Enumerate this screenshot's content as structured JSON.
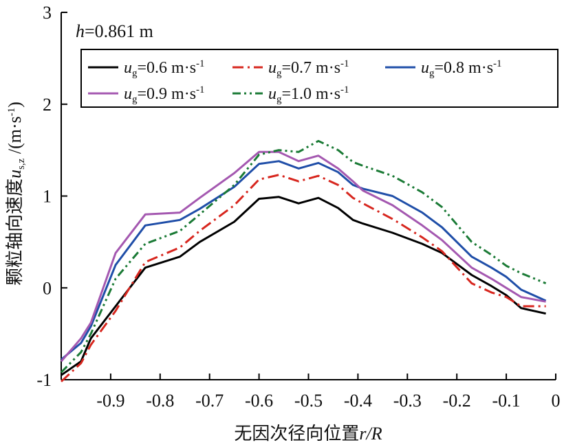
{
  "chart_data": {
    "type": "line",
    "annotation": {
      "var": "h",
      "text": "=0.861 m"
    },
    "xlabel": {
      "text": "无因次径向位置",
      "var": "r/R"
    },
    "ylabel": {
      "text": "颗粒轴向速度",
      "var": "u",
      "sub": "s,z",
      "unit": " /(m·s",
      "unit_sup": "-1",
      "unit_close": ")"
    },
    "xlim": [
      -1,
      0
    ],
    "ylim": [
      -1,
      3
    ],
    "xticks": [
      -0.9,
      -0.8,
      -0.7,
      -0.6,
      -0.5,
      -0.4,
      -0.3,
      -0.2,
      -0.1,
      0
    ],
    "xtick_labels": [
      "-0.9",
      "-0.8",
      "-0.7",
      "-0.6",
      "-0.5",
      "-0.4",
      "-0.3",
      "-0.2",
      "-0.1",
      "0"
    ],
    "yticks": [
      -1,
      0,
      1,
      2,
      3
    ],
    "ytick_labels": [
      "-1",
      "0",
      "1",
      "2",
      "3"
    ],
    "legend_position": "top",
    "x": [
      -1.0,
      -0.96,
      -0.94,
      -0.89,
      -0.83,
      -0.76,
      -0.72,
      -0.65,
      -0.6,
      -0.56,
      -0.52,
      -0.48,
      -0.44,
      -0.41,
      -0.39,
      -0.33,
      -0.27,
      -0.23,
      -0.17,
      -0.13,
      -0.1,
      -0.07,
      -0.02
    ],
    "series": [
      {
        "name": "=0.6 m·s",
        "var": "u",
        "sub": "g",
        "sup": "-1",
        "color": "#000000",
        "dash": "solid",
        "values": [
          -0.95,
          -0.8,
          -0.55,
          -0.2,
          0.22,
          0.34,
          0.5,
          0.72,
          0.97,
          0.99,
          0.92,
          0.98,
          0.87,
          0.74,
          0.7,
          0.6,
          0.48,
          0.38,
          0.14,
          0.02,
          -0.08,
          -0.22,
          -0.28
        ]
      },
      {
        "name": "=0.7 m·s",
        "var": "u",
        "sub": "g",
        "sup": "-1",
        "color": "#d7261e",
        "dash": "dashdot",
        "values": [
          -1.02,
          -0.82,
          -0.62,
          -0.25,
          0.28,
          0.44,
          0.62,
          0.9,
          1.18,
          1.23,
          1.16,
          1.22,
          1.12,
          0.98,
          0.92,
          0.75,
          0.55,
          0.4,
          0.05,
          -0.05,
          -0.1,
          -0.2,
          -0.2
        ]
      },
      {
        "name": "=0.8 m·s",
        "var": "u",
        "sub": "g",
        "sup": "-1",
        "color": "#1f4ea8",
        "dash": "solid",
        "values": [
          -0.78,
          -0.6,
          -0.42,
          0.25,
          0.68,
          0.74,
          0.86,
          1.1,
          1.35,
          1.38,
          1.3,
          1.36,
          1.26,
          1.12,
          1.08,
          1.0,
          0.82,
          0.66,
          0.34,
          0.22,
          0.12,
          -0.02,
          -0.14
        ]
      },
      {
        "name": "=0.9 m·s",
        "var": "u",
        "sub": "g",
        "sup": "-1",
        "color": "#a458b0",
        "dash": "solid",
        "values": [
          -0.8,
          -0.55,
          -0.38,
          0.38,
          0.8,
          0.82,
          0.98,
          1.25,
          1.48,
          1.48,
          1.38,
          1.44,
          1.3,
          1.16,
          1.06,
          0.9,
          0.68,
          0.52,
          0.22,
          0.1,
          0.0,
          -0.1,
          -0.15
        ]
      },
      {
        "name": "=1.0 m·s",
        "var": "u",
        "sub": "g",
        "sup": "-1",
        "color": "#1a7a35",
        "dash": "dashdotdot",
        "values": [
          -0.92,
          -0.7,
          -0.5,
          0.1,
          0.48,
          0.62,
          0.8,
          1.12,
          1.45,
          1.5,
          1.48,
          1.6,
          1.5,
          1.37,
          1.33,
          1.22,
          1.04,
          0.88,
          0.5,
          0.36,
          0.24,
          0.16,
          0.05
        ]
      }
    ]
  }
}
